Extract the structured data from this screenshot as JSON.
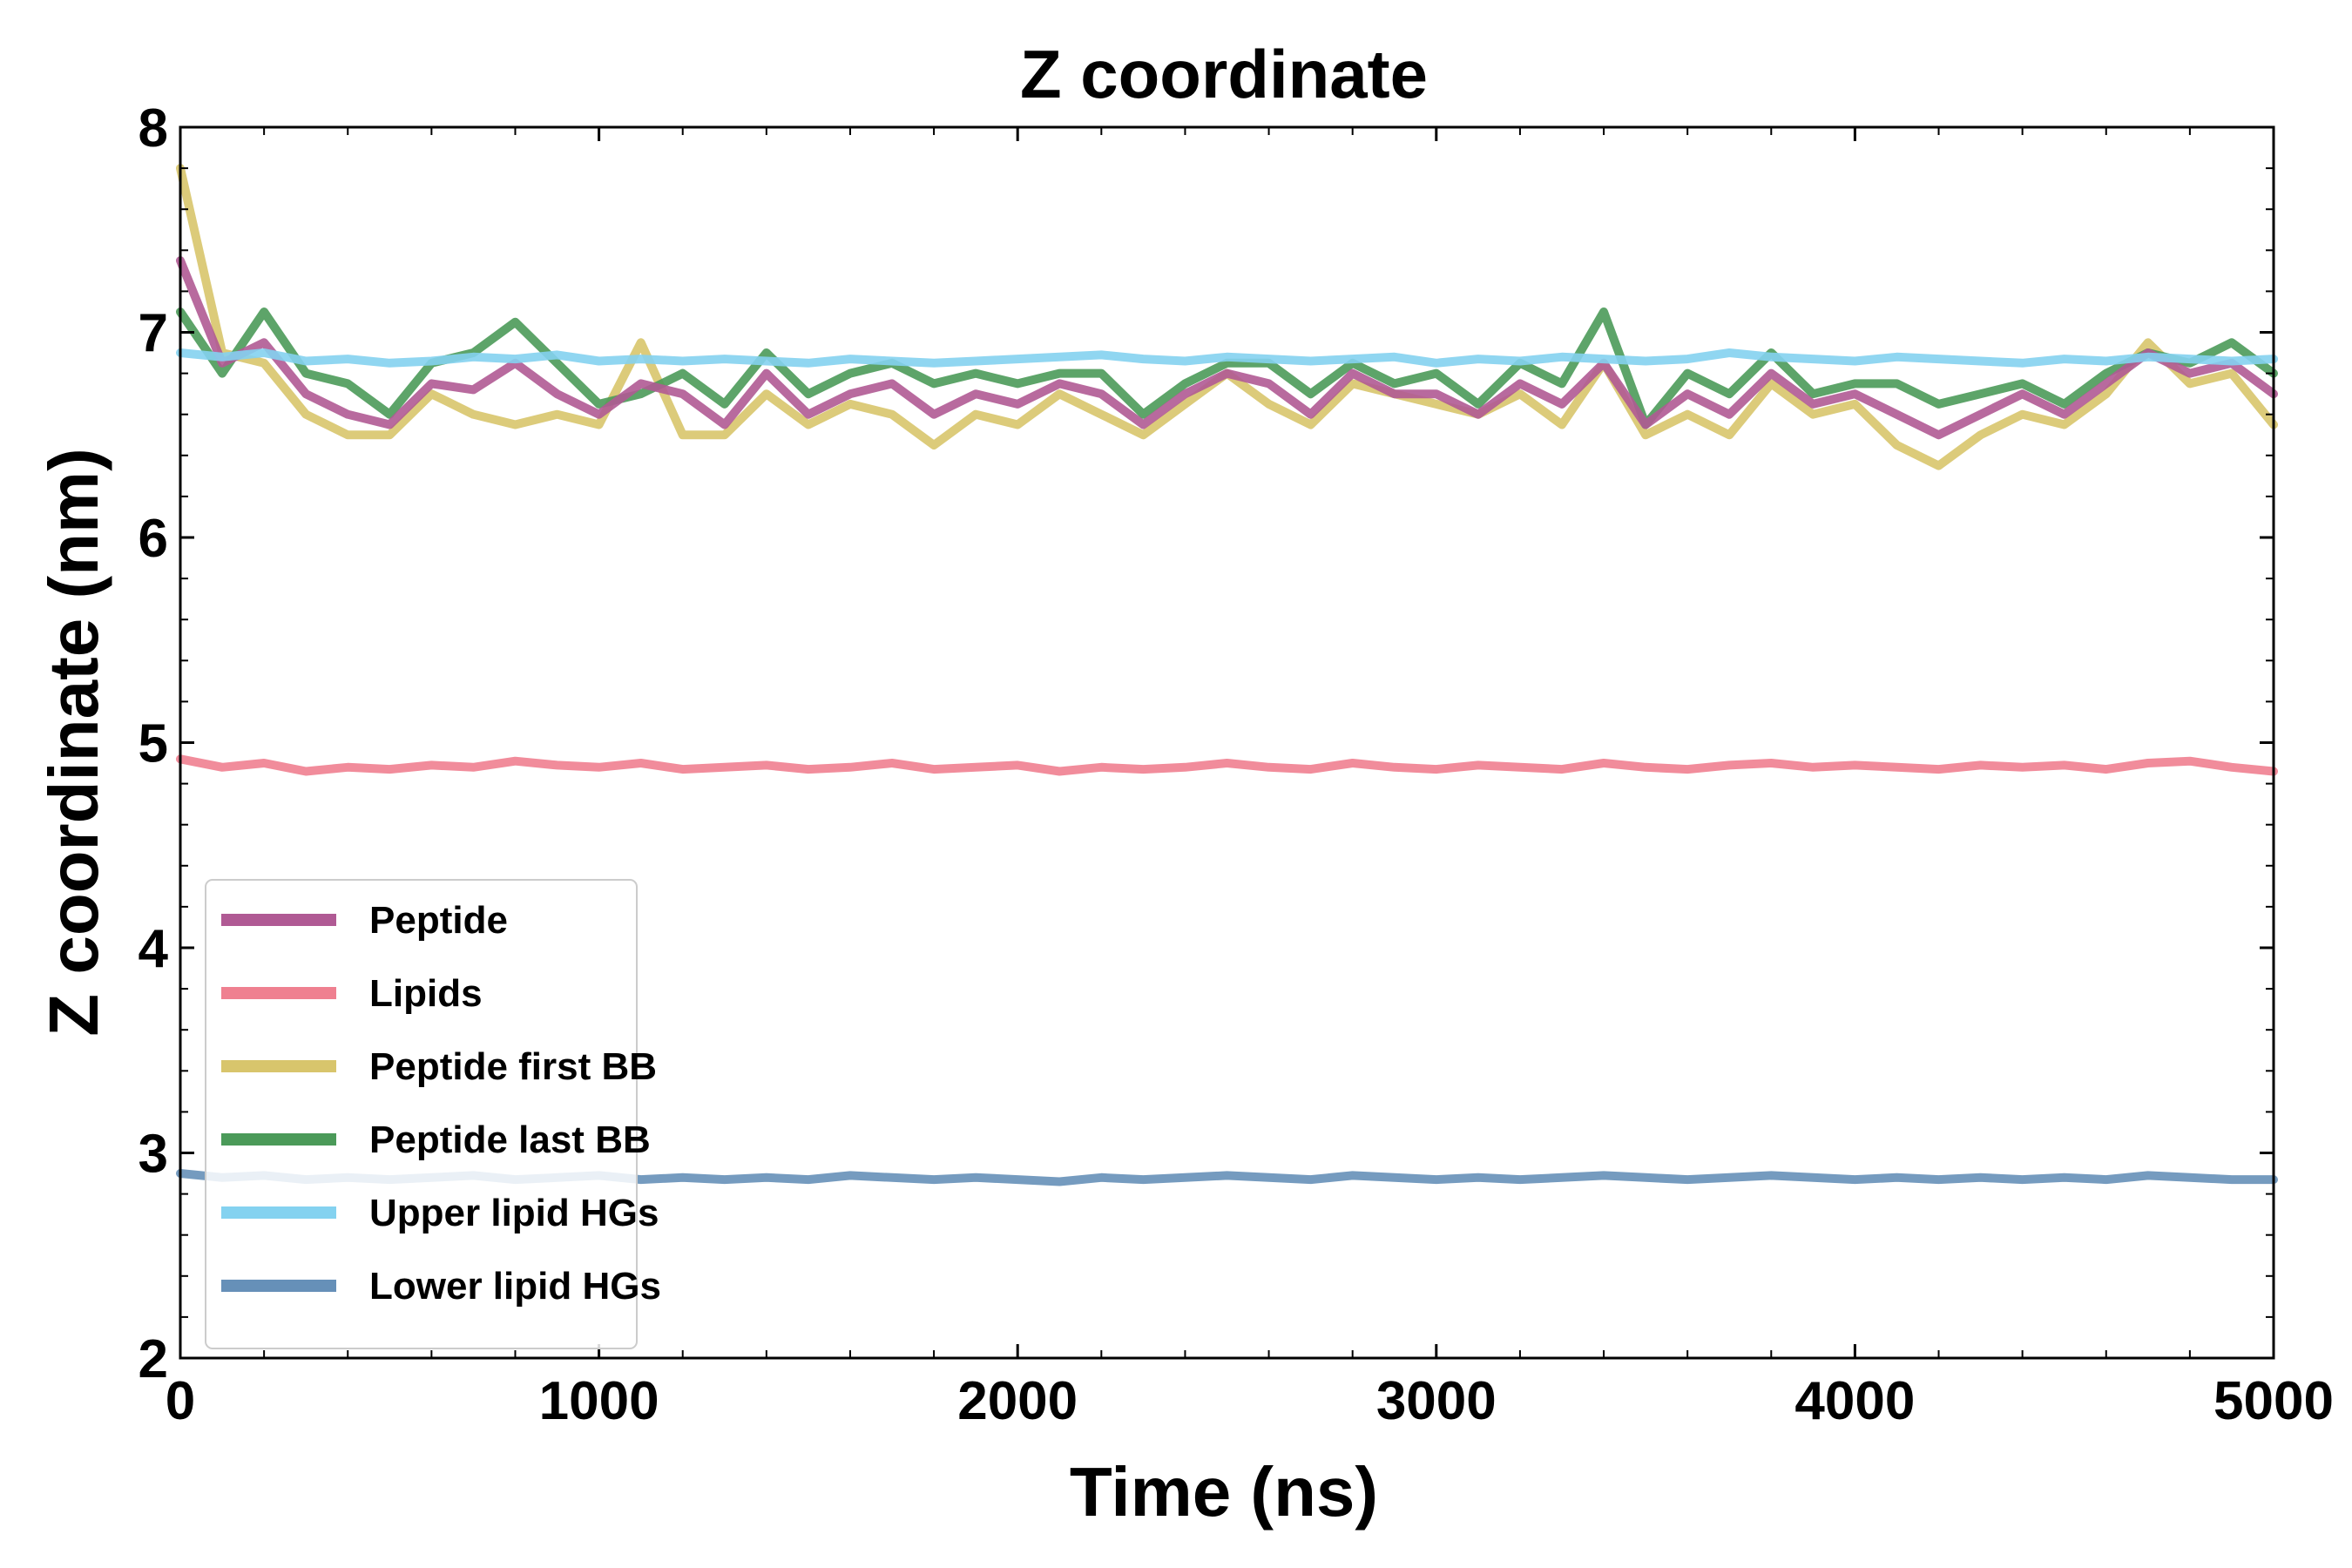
{
  "chart_data": {
    "type": "line",
    "title": "Z coordinate",
    "xlabel": "Time (ns)",
    "ylabel": "Z coordinate (nm)",
    "xlim": [
      0,
      5000
    ],
    "ylim": [
      2,
      8
    ],
    "xticks": [
      "0",
      "1000",
      "2000",
      "3000",
      "4000",
      "5000"
    ],
    "yticks": [
      "2",
      "3",
      "4",
      "5",
      "6",
      "7",
      "8"
    ],
    "grid": false,
    "legend_position": "lower-left",
    "x": [
      0,
      100,
      200,
      300,
      400,
      500,
      600,
      700,
      800,
      900,
      1000,
      1100,
      1200,
      1300,
      1400,
      1500,
      1600,
      1700,
      1800,
      1900,
      2000,
      2100,
      2200,
      2300,
      2400,
      2500,
      2600,
      2700,
      2800,
      2900,
      3000,
      3100,
      3200,
      3300,
      3400,
      3500,
      3600,
      3700,
      3800,
      3900,
      4000,
      4100,
      4200,
      4300,
      4400,
      4500,
      4600,
      4700,
      4800,
      4900,
      5000
    ],
    "series": [
      {
        "name": "Peptide",
        "color": "#b05a94",
        "values": [
          7.35,
          6.85,
          6.95,
          6.7,
          6.6,
          6.55,
          6.75,
          6.72,
          6.85,
          6.7,
          6.6,
          6.75,
          6.7,
          6.55,
          6.8,
          6.6,
          6.7,
          6.75,
          6.6,
          6.7,
          6.65,
          6.75,
          6.7,
          6.55,
          6.7,
          6.8,
          6.75,
          6.6,
          6.8,
          6.7,
          6.7,
          6.6,
          6.75,
          6.65,
          6.85,
          6.55,
          6.7,
          6.6,
          6.8,
          6.65,
          6.7,
          6.6,
          6.5,
          6.6,
          6.7,
          6.6,
          6.75,
          6.9,
          6.8,
          6.85,
          6.7
        ]
      },
      {
        "name": "Lipids",
        "color": "#ef8090",
        "values": [
          4.92,
          4.88,
          4.9,
          4.86,
          4.88,
          4.87,
          4.89,
          4.88,
          4.91,
          4.89,
          4.88,
          4.9,
          4.87,
          4.88,
          4.89,
          4.87,
          4.88,
          4.9,
          4.87,
          4.88,
          4.89,
          4.86,
          4.88,
          4.87,
          4.88,
          4.9,
          4.88,
          4.87,
          4.9,
          4.88,
          4.87,
          4.89,
          4.88,
          4.87,
          4.9,
          4.88,
          4.87,
          4.89,
          4.9,
          4.88,
          4.89,
          4.88,
          4.87,
          4.89,
          4.88,
          4.89,
          4.87,
          4.9,
          4.91,
          4.88,
          4.86
        ]
      },
      {
        "name": "Peptide first BB",
        "color": "#d8c56c",
        "values": [
          7.8,
          6.9,
          6.85,
          6.6,
          6.5,
          6.5,
          6.7,
          6.6,
          6.55,
          6.6,
          6.55,
          6.95,
          6.5,
          6.5,
          6.7,
          6.55,
          6.65,
          6.6,
          6.45,
          6.6,
          6.55,
          6.7,
          6.6,
          6.5,
          6.65,
          6.8,
          6.65,
          6.55,
          6.75,
          6.7,
          6.65,
          6.6,
          6.7,
          6.55,
          6.85,
          6.5,
          6.6,
          6.5,
          6.75,
          6.6,
          6.65,
          6.45,
          6.35,
          6.5,
          6.6,
          6.55,
          6.7,
          6.95,
          6.75,
          6.8,
          6.55
        ]
      },
      {
        "name": "Peptide last BB",
        "color": "#4b9a59",
        "values": [
          7.1,
          6.8,
          7.1,
          6.8,
          6.75,
          6.6,
          6.85,
          6.9,
          7.05,
          6.85,
          6.65,
          6.7,
          6.8,
          6.65,
          6.9,
          6.7,
          6.8,
          6.85,
          6.75,
          6.8,
          6.75,
          6.8,
          6.8,
          6.6,
          6.75,
          6.85,
          6.85,
          6.7,
          6.85,
          6.75,
          6.8,
          6.65,
          6.85,
          6.75,
          7.1,
          6.55,
          6.8,
          6.7,
          6.9,
          6.7,
          6.75,
          6.75,
          6.65,
          6.7,
          6.75,
          6.65,
          6.8,
          6.9,
          6.85,
          6.95,
          6.8
        ]
      },
      {
        "name": "Upper lipid HGs",
        "color": "#84d2f0",
        "values": [
          6.9,
          6.88,
          6.9,
          6.86,
          6.87,
          6.85,
          6.86,
          6.88,
          6.87,
          6.89,
          6.86,
          6.87,
          6.86,
          6.87,
          6.86,
          6.85,
          6.87,
          6.86,
          6.85,
          6.86,
          6.87,
          6.88,
          6.89,
          6.87,
          6.86,
          6.88,
          6.87,
          6.86,
          6.87,
          6.88,
          6.85,
          6.87,
          6.86,
          6.88,
          6.87,
          6.86,
          6.87,
          6.9,
          6.88,
          6.87,
          6.86,
          6.88,
          6.87,
          6.86,
          6.85,
          6.87,
          6.86,
          6.88,
          6.87,
          6.86,
          6.87
        ]
      },
      {
        "name": "Lower lipid HGs",
        "color": "#6690b8",
        "values": [
          2.9,
          2.88,
          2.89,
          2.87,
          2.88,
          2.87,
          2.88,
          2.89,
          2.87,
          2.88,
          2.89,
          2.87,
          2.88,
          2.87,
          2.88,
          2.87,
          2.89,
          2.88,
          2.87,
          2.88,
          2.87,
          2.86,
          2.88,
          2.87,
          2.88,
          2.89,
          2.88,
          2.87,
          2.89,
          2.88,
          2.87,
          2.88,
          2.87,
          2.88,
          2.89,
          2.88,
          2.87,
          2.88,
          2.89,
          2.88,
          2.87,
          2.88,
          2.87,
          2.88,
          2.87,
          2.88,
          2.87,
          2.89,
          2.88,
          2.87,
          2.87
        ]
      }
    ]
  }
}
